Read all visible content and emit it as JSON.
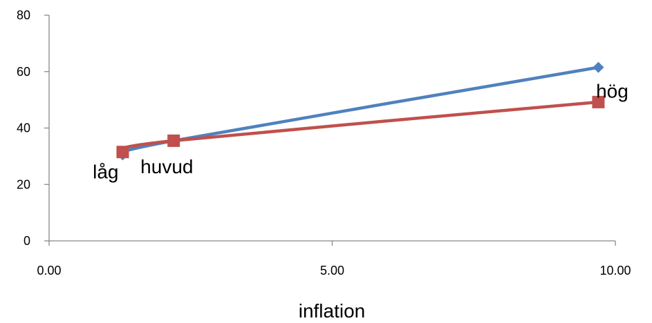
{
  "chart_data": {
    "type": "scatter",
    "xlabel": "inflation",
    "ylabel": "",
    "title": "",
    "xlim": [
      0,
      10
    ],
    "ylim": [
      0,
      80
    ],
    "x_ticks": [
      "0.00",
      "5.00",
      "10.00"
    ],
    "x_tick_values": [
      0,
      5,
      10
    ],
    "y_ticks": [
      "0",
      "20",
      "40",
      "60",
      "80"
    ],
    "y_tick_values": [
      0,
      20,
      40,
      60,
      80
    ],
    "grid": false,
    "series": [
      {
        "marker": "diamond",
        "color": "#4F81BD",
        "points": [
          {
            "x": 1.3,
            "y": 30.5
          },
          {
            "x": 2.2,
            "y": 35.5
          },
          {
            "x": 9.7,
            "y": 61.5
          }
        ]
      },
      {
        "marker": "square",
        "color": "#C0504D",
        "points": [
          {
            "x": 1.3,
            "y": 31.5
          },
          {
            "x": 2.2,
            "y": 35.5
          },
          {
            "x": 9.7,
            "y": 49.2
          }
        ]
      }
    ],
    "annotations": [
      {
        "text": "låg",
        "x": 1.3,
        "y": 30.5,
        "pos": "below-left"
      },
      {
        "text": "huvud",
        "x": 2.2,
        "y": 35.5,
        "pos": "below-right"
      },
      {
        "text": "hög",
        "x": 9.7,
        "y": 61.5,
        "pos": "below"
      }
    ]
  }
}
